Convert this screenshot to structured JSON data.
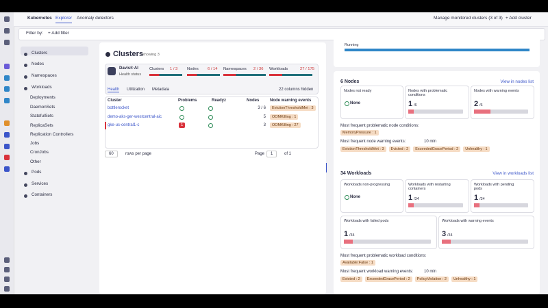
{
  "topnav": {
    "app": "Kubernetes",
    "tabs": [
      "Explorer",
      "Anomaly detectors"
    ],
    "manage": "Manage monitored clusters (3 of 3)",
    "add_cluster": "+ Add cluster"
  },
  "filter": {
    "label": "Filter by:",
    "add": "+ Add filter"
  },
  "sidebar": {
    "items": [
      "Clusters",
      "Nodes",
      "Namespaces",
      "Workloads",
      "Deployments",
      "DaemonSets",
      "StatefulSets",
      "ReplicaSets",
      "Replication Controllers",
      "Jobs",
      "CronJobs",
      "Other",
      "Pods",
      "Services",
      "Containers"
    ]
  },
  "main": {
    "title": "Clusters",
    "showing": "showing 3",
    "davis": {
      "title": "Davis® AI",
      "subtitle": "Health status",
      "stats": [
        {
          "label": "Clusters",
          "value": "1 / 3"
        },
        {
          "label": "Nodes",
          "value": "6 / 14"
        },
        {
          "label": "Namespaces",
          "value": "2 / 36"
        },
        {
          "label": "Workloads",
          "value": "27 / 175"
        }
      ]
    },
    "tabs": [
      "Health",
      "Utilization",
      "Metadata"
    ],
    "columns_hidden": "22 columns hidden",
    "table": {
      "headers": [
        "Cluster",
        "Problems",
        "Readyz",
        "Nodes",
        "Node warning events"
      ],
      "rows": [
        {
          "name": "bottlerocket",
          "nodes": "3 / 6",
          "events": "EvictionThresholdMet : 3"
        },
        {
          "name": "demo-aks-ger-westcentral-aic",
          "nodes": "5",
          "events": "OOMKilling : 1"
        },
        {
          "name": "gke-us-central1-c",
          "problems": "1",
          "nodes": "3",
          "events": "OOMKilling : 27"
        }
      ]
    },
    "pagination": {
      "page_size": "60",
      "rows_per_page": "rows per page",
      "page": "Page",
      "page_num": "1",
      "of": "of 1"
    }
  },
  "right": {
    "running": "Running",
    "nodes": {
      "title": "6 Nodes",
      "link": "View in nodes list",
      "cards": [
        {
          "label": "Nodes not ready",
          "value": "None"
        },
        {
          "label": "Nodes with problematic conditions",
          "value": "1",
          "total": "/6"
        },
        {
          "label": "Nodes with warning events",
          "value": "2",
          "total": "/6"
        }
      ],
      "conditions_title": "Most frequent problematic node conditions:",
      "conditions": [
        "MemoryPressure : 1"
      ],
      "events_title": "Most frequent node warning events:",
      "events_window": "10 min",
      "events": [
        "EvictionThresholdMet : 3",
        "Evicted : 2",
        "ExceededGracePeriod : 2",
        "Unhealthy : 1"
      ]
    },
    "workloads": {
      "title": "34 Workloads",
      "link": "View in workloads list",
      "cards": [
        {
          "label": "Workloads non-progressing",
          "value": "None"
        },
        {
          "label": "Workloads with restarting containers",
          "value": "1",
          "total": "/34"
        },
        {
          "label": "Workloads with pending pods",
          "value": "1",
          "total": "/34"
        },
        {
          "label": "Workloads with failed pods",
          "value": "1",
          "total": "/34"
        },
        {
          "label": "Workloads with warning events",
          "value": "3",
          "total": "/34"
        }
      ],
      "conditions_title": "Most frequent problematic workload conditions:",
      "conditions": [
        "Available:False : 1"
      ],
      "events_title": "Most frequent workload warning events:",
      "events_window": "10 min",
      "events": [
        "Evicted : 2",
        "ExceededGracePeriod : 2",
        "PolicyViolation : 2",
        "Unhealthy : 1"
      ]
    }
  }
}
